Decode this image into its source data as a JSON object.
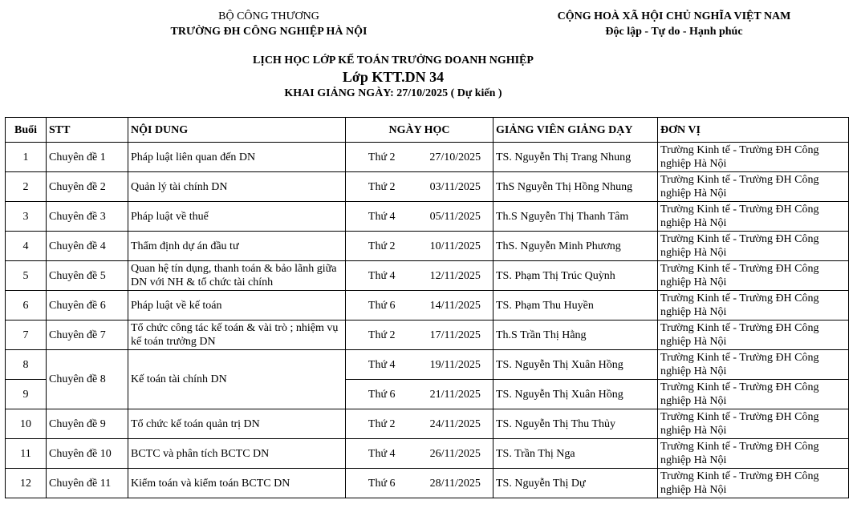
{
  "header_left": {
    "line1": "BỘ CÔNG THƯƠNG",
    "line2": "TRƯỜNG ĐH CÔNG NGHIỆP HÀ NỘI"
  },
  "header_right": {
    "line1": "CỘNG HOÀ XÃ HỘI CHỦ NGHĨA VIỆT NAM",
    "line2": "Độc lập - Tự do - Hạnh phúc"
  },
  "title": {
    "line1": "LỊCH HỌC LỚP KẾ TOÁN TRƯỞNG DOANH NGHIỆP",
    "line2": "Lớp KTT.DN 34",
    "line3": "KHAI GIẢNG NGÀY: 27/10/2025 ( Dự kiến )"
  },
  "columns": {
    "buoi": "Buổi",
    "stt": "STT",
    "noidung": "NỘI DUNG",
    "ngay": "NGÀY HỌC",
    "gv": "GIẢNG VIÊN GIẢNG DẠY",
    "donvi": "ĐƠN VỊ"
  },
  "rows": [
    {
      "buoi": "1",
      "stt": "Chuyên đề 1",
      "noidung": "Pháp luật liên quan đến DN",
      "thu": "Thứ 2",
      "date": "27/10/2025",
      "gv": "TS. Nguyễn Thị Trang Nhung",
      "donvi": "Trường Kinh tế - Trường ĐH Công nghiệp Hà Nội"
    },
    {
      "buoi": "2",
      "stt": "Chuyên đề 2",
      "noidung": "Quản lý tài chính DN",
      "thu": "Thứ 2",
      "date": "03/11/2025",
      "gv": "ThS Nguyễn Thị Hồng Nhung",
      "donvi": "Trường Kinh tế - Trường ĐH Công nghiệp Hà Nội"
    },
    {
      "buoi": "3",
      "stt": "Chuyên đề 3",
      "noidung": "Pháp luật về thuế",
      "thu": "Thứ 4",
      "date": "05/11/2025",
      "gv": "Th.S Nguyễn Thị Thanh Tâm",
      "donvi": "Trường Kinh tế - Trường ĐH Công nghiệp Hà Nội"
    },
    {
      "buoi": "4",
      "stt": "Chuyên đề 4",
      "noidung": "Thẩm định dự án đầu tư",
      "thu": "Thứ 2",
      "date": "10/11/2025",
      "gv": "ThS. Nguyễn Minh Phương",
      "donvi": "Trường Kinh tế - Trường ĐH Công nghiệp Hà Nội"
    },
    {
      "buoi": "5",
      "stt": "Chuyên đề 5",
      "noidung": "Quan hệ tín dụng, thanh toán & bảo lãnh giữa DN với NH & tổ chức tài chính",
      "thu": "Thứ 4",
      "date": "12/11/2025",
      "gv": "TS. Phạm Thị Trúc Quỳnh",
      "donvi": "Trường Kinh tế - Trường ĐH Công nghiệp Hà Nội"
    },
    {
      "buoi": "6",
      "stt": "Chuyên đề 6",
      "noidung": "Pháp luật về kế toán",
      "thu": "Thứ 6",
      "date": "14/11/2025",
      "gv": "TS. Phạm Thu Huyền",
      "donvi": "Trường Kinh tế - Trường ĐH Công nghiệp Hà Nội"
    },
    {
      "buoi": "7",
      "stt": "Chuyên đề 7",
      "noidung": "Tổ chức công tác kế toán & vài trò ; nhiệm vụ kế toán trưởng DN",
      "thu": "Thứ 2",
      "date": "17/11/2025",
      "gv": "Th.S Trần Thị Hằng",
      "donvi": "Trường Kinh tế - Trường ĐH Công nghiệp Hà Nội"
    },
    {
      "buoi": "8",
      "stt": "Chuyên đề 8",
      "noidung": "Kế toán tài chính DN",
      "thu": "Thứ 4",
      "date": "19/11/2025",
      "gv": "TS. Nguyễn Thị Xuân Hồng",
      "donvi": "Trường Kinh tế - Trường ĐH Công nghiệp Hà Nội",
      "span": 2
    },
    {
      "buoi": "9",
      "thu": "Thứ 6",
      "date": "21/11/2025",
      "gv": "TS. Nguyễn Thị Xuân Hồng",
      "donvi": "Trường Kinh tế - Trường ĐH Công nghiệp Hà Nội",
      "merged": true
    },
    {
      "buoi": "10",
      "stt": "Chuyên đề 9",
      "noidung": "Tổ chức kế toán quản trị DN",
      "thu": "Thứ 2",
      "date": "24/11/2025",
      "gv": "TS. Nguyễn Thị Thu Thủy",
      "donvi": "Trường Kinh tế - Trường ĐH Công nghiệp Hà Nội"
    },
    {
      "buoi": "11",
      "stt": "Chuyên đề 10",
      "noidung": "BCTC và phân tích BCTC DN",
      "thu": "Thứ 4",
      "date": "26/11/2025",
      "gv": "TS. Trần Thị Nga",
      "donvi": "Trường Kinh tế - Trường ĐH Công nghiệp Hà Nội"
    },
    {
      "buoi": "12",
      "stt": "Chuyên đề 11",
      "noidung": "Kiểm toán và kiểm toán BCTC DN",
      "thu": "Thứ 6",
      "date": "28/11/2025",
      "gv": "TS. Nguyễn Thị Dự",
      "donvi": "Trường Kinh tế - Trường ĐH Công nghiệp Hà Nội"
    }
  ]
}
